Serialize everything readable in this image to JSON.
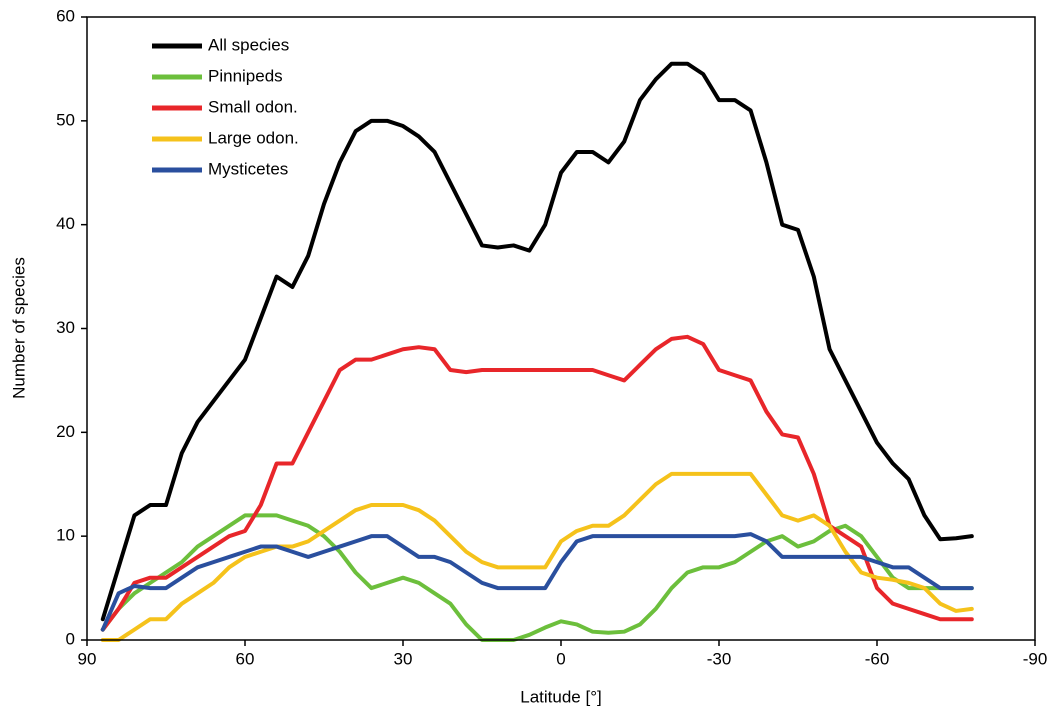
{
  "chart_data": {
    "type": "line",
    "x_label": "Latitude [°]",
    "y_label": "Number of species",
    "xlim": [
      90,
      -90
    ],
    "xticks": [
      90,
      60,
      30,
      0,
      -30,
      -60,
      -90
    ],
    "ylim": [
      0,
      60
    ],
    "yticks": [
      0,
      10,
      20,
      30,
      40,
      50,
      60
    ],
    "grid": false,
    "legend": "upper-left",
    "x": [
      87,
      84,
      81,
      78,
      75,
      72,
      69,
      66,
      63,
      60,
      57,
      54,
      51,
      48,
      45,
      42,
      39,
      36,
      33,
      30,
      27,
      24,
      21,
      18,
      15,
      12,
      9,
      6,
      3,
      0,
      -3,
      -6,
      -9,
      -12,
      -15,
      -18,
      -21,
      -24,
      -27,
      -30,
      -33,
      -36,
      -39,
      -42,
      -45,
      -48,
      -51,
      -54,
      -57,
      -60,
      -63,
      -66,
      -69,
      -72,
      -75,
      -78
    ],
    "series": [
      {
        "name": "All species",
        "color": "#000000",
        "values": [
          2,
          7,
          12,
          13,
          13,
          18,
          21,
          23,
          25,
          27,
          31,
          35,
          34,
          37,
          42,
          46,
          49,
          50,
          50,
          49.5,
          48.5,
          47,
          44,
          41,
          38,
          37.8,
          38,
          37.5,
          40,
          45,
          47,
          47,
          46,
          48,
          52,
          54,
          55.5,
          55.5,
          54.5,
          52,
          52,
          51,
          46,
          40,
          39.5,
          35,
          28,
          25,
          22,
          19,
          17,
          15.5,
          12,
          9.7,
          9.8,
          10
        ]
      },
      {
        "name": "Pinnipeds",
        "color": "#6cbf3c",
        "values": [
          1,
          3,
          4.5,
          5.5,
          6.5,
          7.5,
          9,
          10,
          11,
          12,
          12,
          12,
          11.5,
          11,
          10,
          8.5,
          6.5,
          5,
          5.5,
          6,
          5.5,
          4.5,
          3.5,
          1.5,
          0,
          0,
          0,
          0.5,
          1.2,
          1.8,
          1.5,
          0.8,
          0.7,
          0.8,
          1.5,
          3,
          5,
          6.5,
          7,
          7,
          7.5,
          8.5,
          9.5,
          10,
          9,
          9.5,
          10.5,
          11,
          10,
          8,
          6,
          5,
          5,
          5,
          5,
          5
        ]
      },
      {
        "name": "Small odon.",
        "color": "#e8262a",
        "values": [
          1,
          3,
          5.5,
          6,
          6,
          7,
          8,
          9,
          10,
          10.5,
          13,
          17,
          17,
          20,
          23,
          26,
          27,
          27,
          27.5,
          28,
          28.2,
          28,
          26,
          25.8,
          26,
          26,
          26,
          26,
          26,
          26,
          26,
          26,
          25.5,
          25,
          26.5,
          28,
          29,
          29.2,
          28.5,
          26,
          25.5,
          25,
          22,
          19.8,
          19.5,
          16,
          11,
          10,
          9,
          5,
          3.5,
          3,
          2.5,
          2,
          2,
          2
        ]
      },
      {
        "name": "Large odon.",
        "color": "#f5c21b",
        "values": [
          0,
          0,
          1,
          2,
          2,
          3.5,
          4.5,
          5.5,
          7,
          8,
          8.5,
          9,
          9,
          9.5,
          10.5,
          11.5,
          12.5,
          13,
          13,
          13,
          12.5,
          11.5,
          10,
          8.5,
          7.5,
          7,
          7,
          7,
          7,
          9.5,
          10.5,
          11,
          11,
          12,
          13.5,
          15,
          16,
          16,
          16,
          16,
          16,
          16,
          14,
          12,
          11.5,
          12,
          11,
          8.5,
          6.5,
          6,
          5.8,
          5.5,
          5,
          3.5,
          2.8,
          3
        ]
      },
      {
        "name": "Mysticetes",
        "color": "#2a4f9e",
        "values": [
          1,
          4.5,
          5.2,
          5,
          5,
          6,
          7,
          7.5,
          8,
          8.5,
          9,
          9,
          8.5,
          8,
          8.5,
          9,
          9.5,
          10,
          10,
          9,
          8,
          8,
          7.5,
          6.5,
          5.5,
          5,
          5,
          5,
          5,
          7.5,
          9.5,
          10,
          10,
          10,
          10,
          10,
          10,
          10,
          10,
          10,
          10,
          10.2,
          9.5,
          8,
          8,
          8,
          8,
          8,
          8,
          7.5,
          7,
          7,
          6,
          5,
          5,
          5
        ]
      }
    ]
  }
}
